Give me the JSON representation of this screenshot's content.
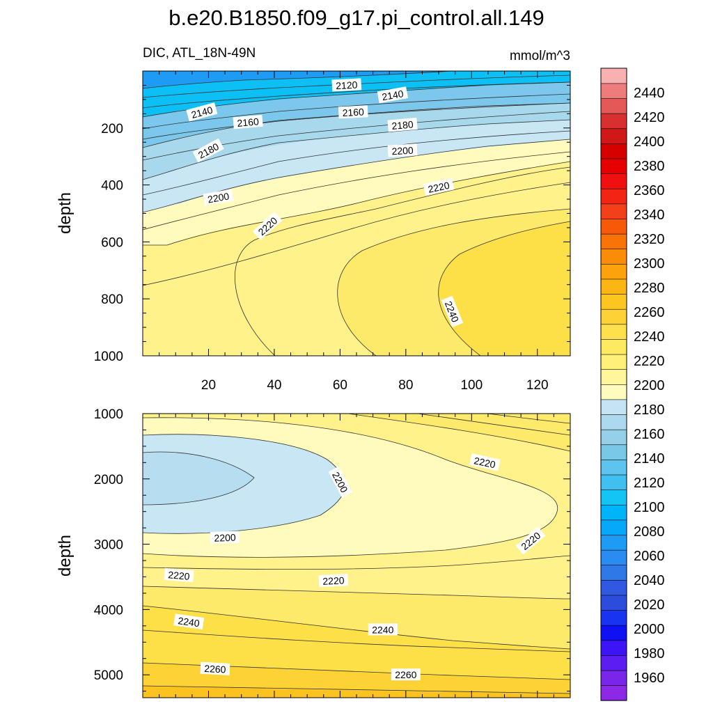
{
  "title": "b.e20.B1850.f09_g17.pi_control.all.149",
  "left_subtitle": "DIC, ATL_18N-49N",
  "right_subtitle": "mmol/m^3",
  "chart_data": {
    "type": "heatmap",
    "variable": "DIC",
    "units": "mmol/m^3",
    "colors": {
      "deep_blue": "#1e88f0",
      "cyan": "#0cc0f5",
      "light_blue": "#a8d8ec",
      "pale_blue": "#c8e6f4",
      "pale_yellow": "#fffbbc",
      "light_yellow": "#fff28a",
      "yellow": "#fde96a",
      "gold": "#fddf48",
      "orange_gold": "#fcc320",
      "contour": "#303030"
    },
    "panels": [
      {
        "name": "upper",
        "ylabel": "depth",
        "x_range": [
          0,
          130
        ],
        "y_range": [
          1000,
          0
        ],
        "x_ticks": [
          20,
          40,
          60,
          80,
          100,
          120
        ],
        "x_tick_labels": [
          "20",
          "40",
          "60",
          "80",
          "100",
          "120"
        ],
        "y_ticks": [
          200,
          400,
          600,
          800,
          1000
        ],
        "y_tick_labels": [
          "200",
          "400",
          "600",
          "800",
          "1000"
        ],
        "contour_labels": [
          {
            "text": "2120",
            "x": 62,
            "y": 50,
            "rot": -3
          },
          {
            "text": "2140",
            "x": 76,
            "y": 85,
            "rot": -10
          },
          {
            "text": "2140",
            "x": 18,
            "y": 145,
            "rot": -15
          },
          {
            "text": "2160",
            "x": 64,
            "y": 145,
            "rot": -3
          },
          {
            "text": "2160",
            "x": 32,
            "y": 180,
            "rot": -5
          },
          {
            "text": "2180",
            "x": 79,
            "y": 190,
            "rot": -5
          },
          {
            "text": "2180",
            "x": 20,
            "y": 280,
            "rot": -28
          },
          {
            "text": "2200",
            "x": 79,
            "y": 280,
            "rot": -3
          },
          {
            "text": "2200",
            "x": 23,
            "y": 445,
            "rot": -10
          },
          {
            "text": "2220",
            "x": 90,
            "y": 408,
            "rot": -12
          },
          {
            "text": "2220",
            "x": 38,
            "y": 545,
            "rot": -42
          },
          {
            "text": "2240",
            "x": 94,
            "y": 845,
            "rot": 68
          }
        ]
      },
      {
        "name": "lower",
        "ylabel": "depth",
        "x_range": [
          0,
          130
        ],
        "y_range": [
          5350,
          1000
        ],
        "y_ticks": [
          1000,
          2000,
          3000,
          4000,
          5000
        ],
        "y_tick_labels": [
          "1000",
          "2000",
          "3000",
          "4000",
          "5000"
        ],
        "contour_labels": [
          {
            "text": "2200",
            "x": 60,
            "y": 2050,
            "rot": 62
          },
          {
            "text": "2220",
            "x": 104,
            "y": 1750,
            "rot": 12
          },
          {
            "text": "2200",
            "x": 25,
            "y": 2900,
            "rot": -2
          },
          {
            "text": "2220",
            "x": 118,
            "y": 2950,
            "rot": -40
          },
          {
            "text": "2220",
            "x": 11,
            "y": 3480,
            "rot": 5
          },
          {
            "text": "2220",
            "x": 58,
            "y": 3560,
            "rot": -3
          },
          {
            "text": "2240",
            "x": 14,
            "y": 4190,
            "rot": 8
          },
          {
            "text": "2240",
            "x": 73,
            "y": 4310,
            "rot": 0
          },
          {
            "text": "2260",
            "x": 22,
            "y": 4910,
            "rot": 3
          },
          {
            "text": "2260",
            "x": 80,
            "y": 5000,
            "rot": 0
          }
        ]
      }
    ],
    "colorbar": {
      "levels": [
        1960,
        1980,
        2000,
        2020,
        2040,
        2060,
        2080,
        2100,
        2120,
        2140,
        2160,
        2180,
        2200,
        2220,
        2240,
        2260,
        2280,
        2300,
        2320,
        2340,
        2360,
        2380,
        2400,
        2420,
        2440
      ],
      "labels": [
        "1960",
        "1980",
        "2000",
        "2020",
        "2040",
        "2060",
        "2080",
        "2100",
        "2120",
        "2140",
        "2160",
        "2180",
        "2200",
        "2220",
        "2240",
        "2260",
        "2280",
        "2300",
        "2320",
        "2340",
        "2360",
        "2380",
        "2400",
        "2420",
        "2440"
      ],
      "colors": [
        "#8c28e6",
        "#7a26e8",
        "#5a1ef0",
        "#3c14f5",
        "#1010f5",
        "#1834f0",
        "#2c4cdc",
        "#3058e0",
        "#2f78e8",
        "#2a8cf0",
        "#1e9cf5",
        "#08a8f8",
        "#00b4fa",
        "#14c4f5",
        "#40c0f0",
        "#5cc4ee",
        "#7ac8e8",
        "#96cfe8",
        "#acd9ee",
        "#c4e4f3",
        "#fffbbc",
        "#fff59a",
        "#fff07a",
        "#feea60",
        "#fde04c",
        "#fdd234",
        "#fcc620",
        "#fcb614",
        "#fba20c",
        "#fa8c08",
        "#f87408",
        "#f65a08",
        "#f44018",
        "#f42414",
        "#f01010",
        "#e60000",
        "#d60000",
        "#d01818",
        "#d83030",
        "#e45858",
        "#ee7c7c",
        "#f8b0b0"
      ]
    }
  }
}
